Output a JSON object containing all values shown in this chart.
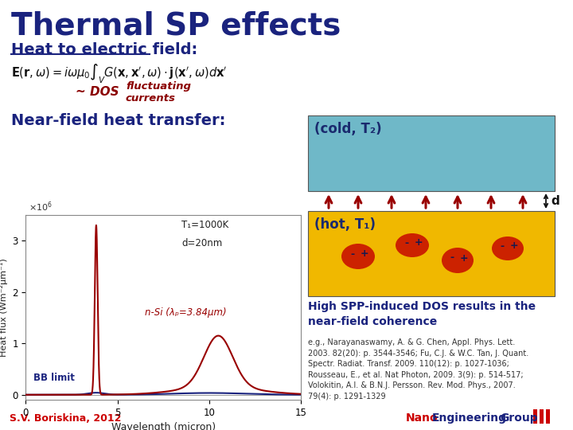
{
  "title": "Thermal SP effects",
  "title_color": "#1a237e",
  "title_fontsize": 28,
  "bg_color": "#ffffff",
  "subtitle1": "Heat to electric field:",
  "subtitle1_color": "#1a237e",
  "subtitle1_fontsize": 14,
  "subtitle2": "Near-field heat transfer:",
  "subtitle2_color": "#1a237e",
  "subtitle2_fontsize": 14,
  "dos_label": "~ DOS",
  "dos_color": "#8b0000",
  "fluct_label": "fluctuating\ncurrents",
  "fluct_color": "#8b0000",
  "cold_label": "(cold, T₂)",
  "cold_color": "#1a2a6e",
  "cold_bg": "#6fb8c8",
  "hot_label": "(hot, T₁)",
  "hot_color": "#1a2a6e",
  "hot_bg": "#f0b800",
  "arrow_color": "#990000",
  "d_label": "d",
  "spp_text": "High SPP-induced DOS results in the\nnear-field coherence",
  "spp_color": "#1a237e",
  "ref_text": "e.g., Narayanaswamy, A. & G. Chen, Appl. Phys. Lett.\n2003. 82(20): p. 3544-3546; Fu, C.J. & W.C. Tan, J. Quant.\nSpectr. Radiat. Transf. 2009. 110(12): p. 1027-1036;\nRousseau, E., et al. Nat Photon, 2009. 3(9): p. 514-517;\nVolokitin, A.I. & B.N.J. Persson. Rev. Mod. Phys., 2007.\n79(4): p. 1291-1329",
  "ref_color": "#333333",
  "footer_left": "S.V. Boriskina, 2012",
  "footer_left_color": "#cc0000",
  "plot_xlabel": "Wavelength (micron)",
  "plot_ylabel": "Heat flux (Wm⁻²μm⁻¹)",
  "plot_title1": "T₁=1000K",
  "plot_title2": "d=20nm",
  "plot_label_red": "n-Si (λₚ=3.84μm)",
  "plot_label_blue": "BB limit",
  "xlim": [
    0,
    15
  ],
  "ylim": [
    -0.05,
    3.5
  ]
}
